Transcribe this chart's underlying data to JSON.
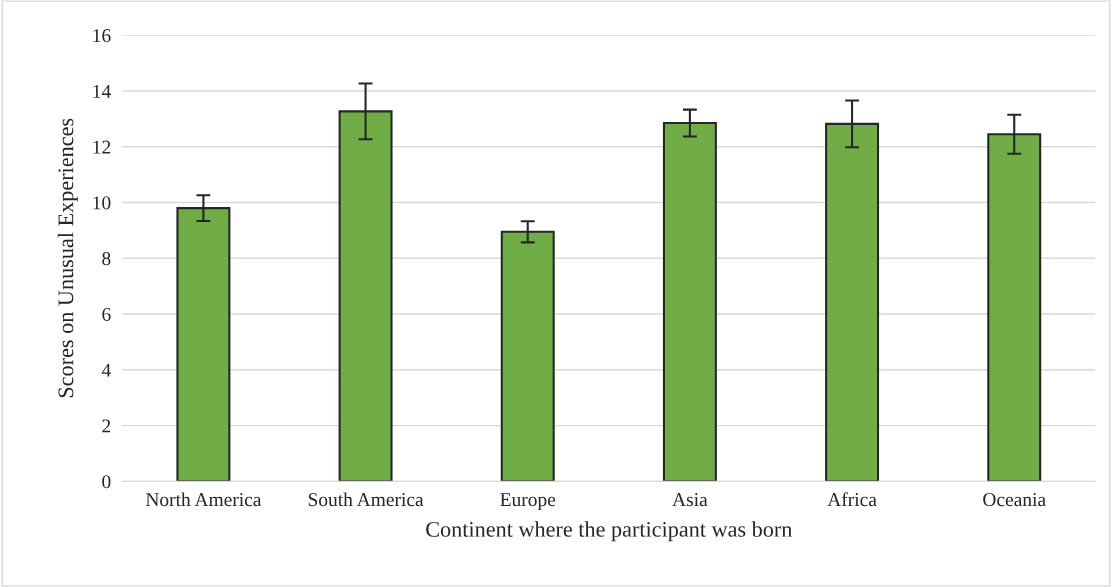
{
  "chart_data": {
    "type": "bar",
    "xlabel": "Continent where the participant was born",
    "ylabel": "Scores on Unusual Experiences",
    "categories": [
      "North America",
      "South America",
      "Europe",
      "Asia",
      "Africa",
      "Oceania"
    ],
    "values": [
      9.8,
      13.27,
      8.95,
      12.85,
      12.82,
      12.45
    ],
    "errors": [
      0.46,
      1.0,
      0.38,
      0.48,
      0.84,
      0.7
    ],
    "color": "#70ad47",
    "ylim": [
      0,
      16
    ],
    "yticks": [
      0,
      2,
      4,
      6,
      8,
      10,
      12,
      14,
      16
    ],
    "grid": "y"
  }
}
